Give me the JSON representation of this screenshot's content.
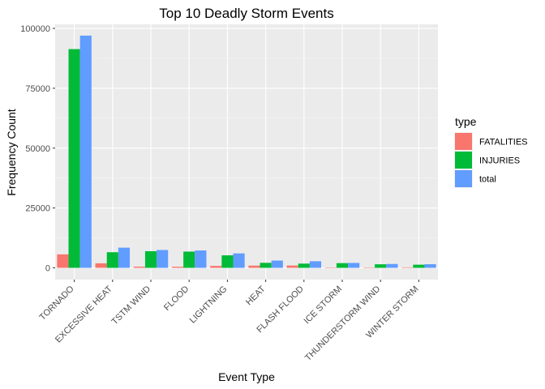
{
  "chart_data": {
    "type": "bar",
    "title": "Top 10 Deadly Storm Events",
    "xlabel": "Event Type",
    "ylabel": "Frequency Count",
    "ylim": [
      -4900,
      101700
    ],
    "yticks": [
      0,
      25000,
      50000,
      75000,
      100000
    ],
    "ytick_labels": [
      "0",
      "25000",
      "50000",
      "75000",
      "100000"
    ],
    "categories": [
      "TORNADO",
      "EXCESSIVE HEAT",
      "TSTM WIND",
      "FLOOD",
      "LIGHTNING",
      "HEAT",
      "FLASH FLOOD",
      "ICE STORM",
      "THUNDERSTORM WIND",
      "WINTER STORM"
    ],
    "series": [
      {
        "name": "FATALITIES",
        "color": "#F8766D",
        "values": [
          5633,
          1903,
          504,
          470,
          816,
          937,
          978,
          89,
          133,
          206
        ]
      },
      {
        "name": "INJURIES",
        "color": "#00BA38",
        "values": [
          91346,
          6525,
          6957,
          6789,
          5230,
          2100,
          1777,
          1975,
          1488,
          1321
        ]
      },
      {
        "name": "total",
        "color": "#619CFF",
        "values": [
          96979,
          8428,
          7461,
          7259,
          6046,
          3037,
          2755,
          2064,
          1621,
          1527
        ]
      }
    ],
    "legend": {
      "title": "type",
      "position": "right"
    },
    "grid": true,
    "panel_background": "#EBEBEB"
  }
}
